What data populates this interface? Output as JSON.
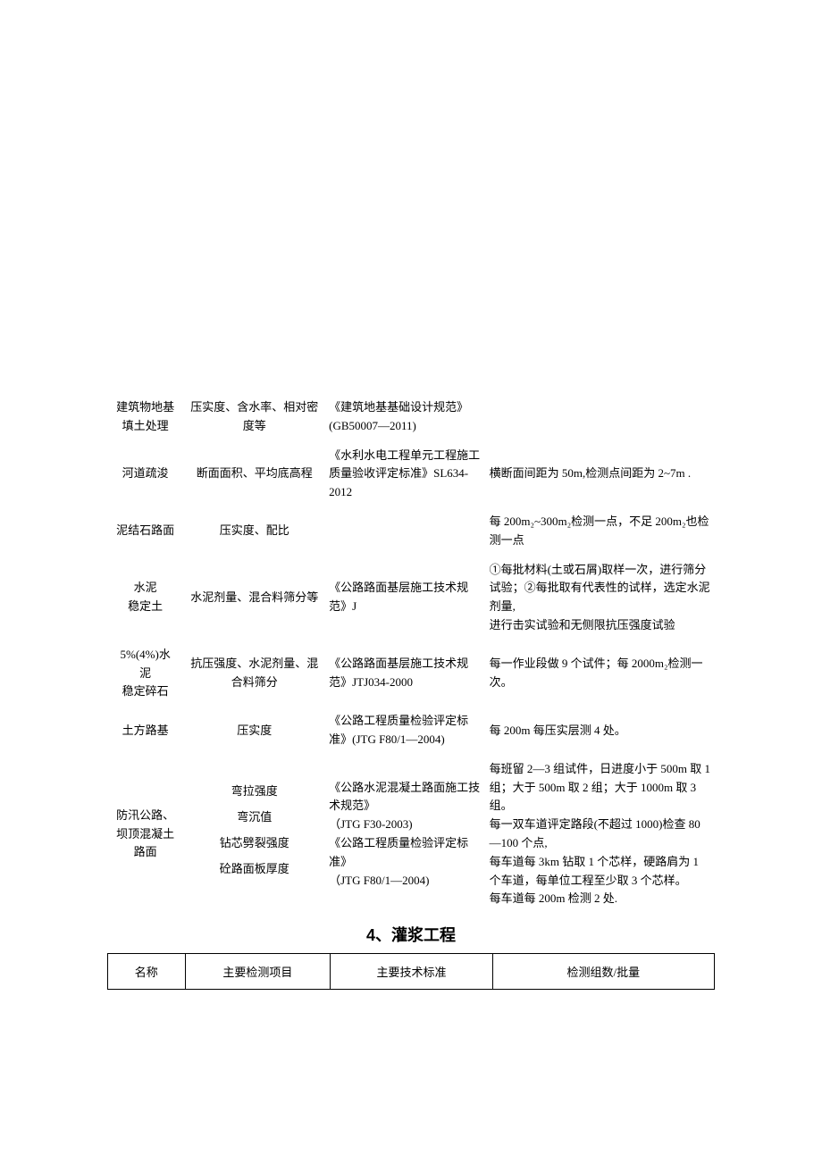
{
  "rows": [
    {
      "name": "建筑物地基\n填土处理",
      "detect": "压实度、含水率、相对密度等",
      "std": "《建筑地基基础设计规范》(GB50007—2011)",
      "batch": ""
    },
    {
      "name": "河道疏浚",
      "detect": "断面面积、平均底高程",
      "std": "《水利水电工程单元工程施工质量验收评定标准》SL634-2012",
      "batch": "横断面间距为 50m,检测点间距为 2~7m ."
    },
    {
      "name": "泥结石路面",
      "detect": "压实度、配比",
      "std": "",
      "batch": "每 200m₂~300m₂检测一点，不足 200m₂也检测一点"
    },
    {
      "name": "水泥\n稳定土",
      "detect": "水泥剂量、混合料筛分等",
      "std": "《公路路面基层施工技术规范》J",
      "batch": "①每批材料(土或石屑)取样一次，进行筛分试验；②每批取有代表性的试样，选定水泥剂量,",
      "batch_truncated": "进行击实试验和无侧限抗压强度试验"
    },
    {
      "name": "5%(4%)水\n泥\n稳定碎石",
      "detect": "抗压强度、水泥剂量、混合料筛分",
      "std": "《公路路面基层施工技术规范》JTJ034-2000",
      "batch": "每一作业段做 9 个试件；每 2000m₂检测一次。"
    },
    {
      "name": "土方路基",
      "detect": "压实度",
      "std": "《公路工程质量检验评定标准》(JTG F80/1—2004)",
      "batch": "每 200m 每压实层测 4 处。"
    }
  ],
  "road_row": {
    "name": "防汛公路、\n坝顶混凝土\n路面",
    "detect_items": [
      "弯拉强度",
      "弯沉值",
      "钻芯劈裂强度",
      "砼路面板厚度"
    ],
    "std": "《公路水泥混凝土路面施工技术规范》\n（JTG F30-2003)\n《公路工程质量检验评定标准》\n（JTG F80/1—2004)",
    "batch_items": [
      "每班留 2—3 组试件，日进度小于 500m 取 1 组；大于 500m 取 2 组；大于 1000m 取 3 组。",
      "每一双车道评定路段(不超过 1000)检查 80—100 个点,",
      "每车道每 3km 钻取 1 个芯样，硬路肩为 1 个车道，每单位工程至少取 3 个芯样。",
      "每车道每 200m 检测 2 处."
    ]
  },
  "section4_title": "4、灌浆工程",
  "headers": {
    "name": "名称",
    "detect": "主要检测项目",
    "std": "主要技术标准",
    "batch": "检测组数/批量"
  }
}
